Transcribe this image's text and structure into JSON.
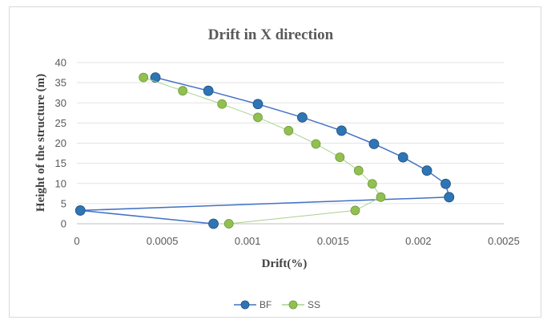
{
  "chart_data": {
    "type": "scatter",
    "title": "Drift in X direction",
    "xlabel": "Drift(%)",
    "ylabel": "Height of the structure  (m)",
    "xlim": [
      0,
      0.0025
    ],
    "ylim": [
      0,
      40
    ],
    "x_ticks": [
      "0",
      "0.0005",
      "0.001",
      "0.0015",
      "0.002",
      "0.0025"
    ],
    "y_ticks": [
      "0",
      "5",
      "10",
      "15",
      "20",
      "25",
      "30",
      "35",
      "40"
    ],
    "x_tick_values": [
      0,
      0.0005,
      0.001,
      0.0015,
      0.002,
      0.0025
    ],
    "y_tick_values": [
      0,
      5,
      10,
      15,
      20,
      25,
      30,
      35,
      40
    ],
    "grid": "horizontal",
    "legend_position": "bottom",
    "series": [
      {
        "name": "BF",
        "color": "#4472c4",
        "marker_fill": "#2e75b6",
        "marker": "circle",
        "points": [
          [
            0.0008,
            0
          ],
          [
            2e-05,
            3.3
          ],
          [
            0.00218,
            6.6
          ],
          [
            0.00216,
            9.9
          ],
          [
            0.00205,
            13.2
          ],
          [
            0.00191,
            16.5
          ],
          [
            0.00174,
            19.8
          ],
          [
            0.00155,
            23.1
          ],
          [
            0.00132,
            26.4
          ],
          [
            0.00106,
            29.7
          ],
          [
            0.00077,
            33.0
          ],
          [
            0.00046,
            36.3
          ]
        ]
      },
      {
        "name": "SS",
        "color": "#a9d18e",
        "marker_fill": "#92c050",
        "marker": "circle",
        "points": [
          [
            0.00089,
            0
          ],
          [
            0.00163,
            3.3
          ],
          [
            0.00178,
            6.6
          ],
          [
            0.00173,
            9.9
          ],
          [
            0.00165,
            13.2
          ],
          [
            0.00154,
            16.5
          ],
          [
            0.0014,
            19.8
          ],
          [
            0.00124,
            23.1
          ],
          [
            0.00106,
            26.4
          ],
          [
            0.00085,
            29.7
          ],
          [
            0.00062,
            33.0
          ],
          [
            0.00039,
            36.3
          ]
        ]
      }
    ]
  }
}
